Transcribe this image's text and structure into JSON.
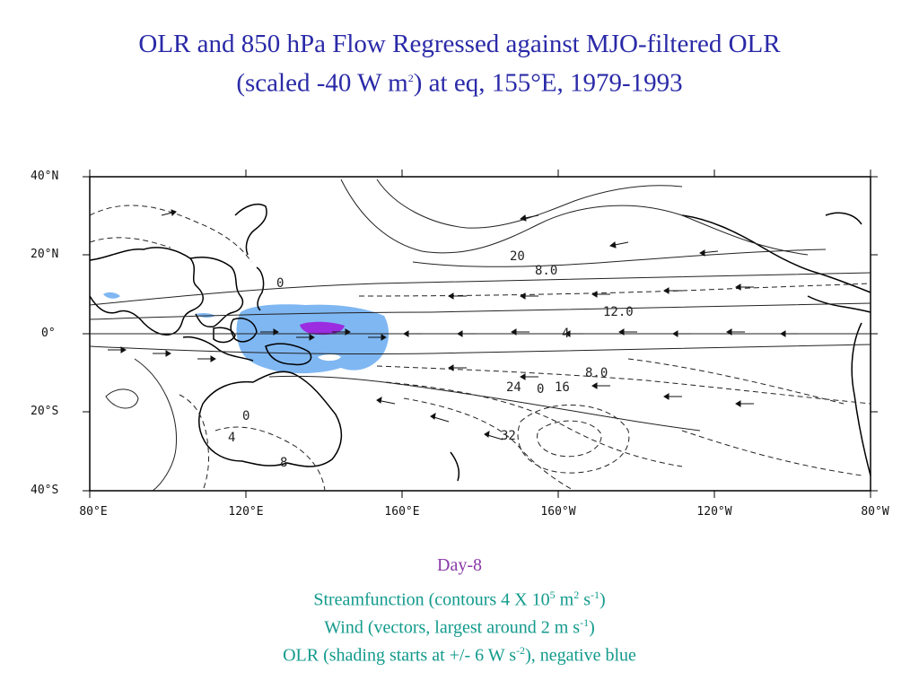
{
  "title": {
    "line1": "OLR and 850 hPa Flow Regressed against MJO-filtered OLR",
    "line2_pre": "(scaled -40 W m",
    "line2_sup": "2",
    "line2_post": ") at eq, 155°E, 1979-1993"
  },
  "map": {
    "lat_labels": [
      "40°N",
      "20°N",
      "0°",
      "20°S",
      "40°S"
    ],
    "lon_labels": [
      "80°E",
      "120°E",
      "160°E",
      "160°W",
      "120°W",
      "80°W"
    ],
    "contour_labels": [
      "0",
      "20",
      "8.0",
      "12.0",
      "4",
      "8.0",
      "16",
      "24",
      "32",
      "0",
      "4",
      "0",
      "8"
    ],
    "colors": {
      "olr_negative": "#7fb7f2",
      "olr_strong_negative": "#9b2ce0",
      "coast": "#000000",
      "contour": "#222222"
    }
  },
  "caption": {
    "day": "Day-8",
    "streamfunction_pre": "Streamfunction (contours 4 X 10",
    "streamfunction_sup1": "5",
    "streamfunction_mid": " m",
    "streamfunction_sup2": "2",
    "streamfunction_mid2": " s",
    "streamfunction_sup3": "-1",
    "streamfunction_post": ")",
    "wind_pre": "Wind (vectors, largest around 2 m s",
    "wind_sup": "-1",
    "wind_post": ")",
    "olr_pre": "OLR (shading starts at +/- 6 W s",
    "olr_sup": "-2",
    "olr_post": "), negative blue"
  }
}
